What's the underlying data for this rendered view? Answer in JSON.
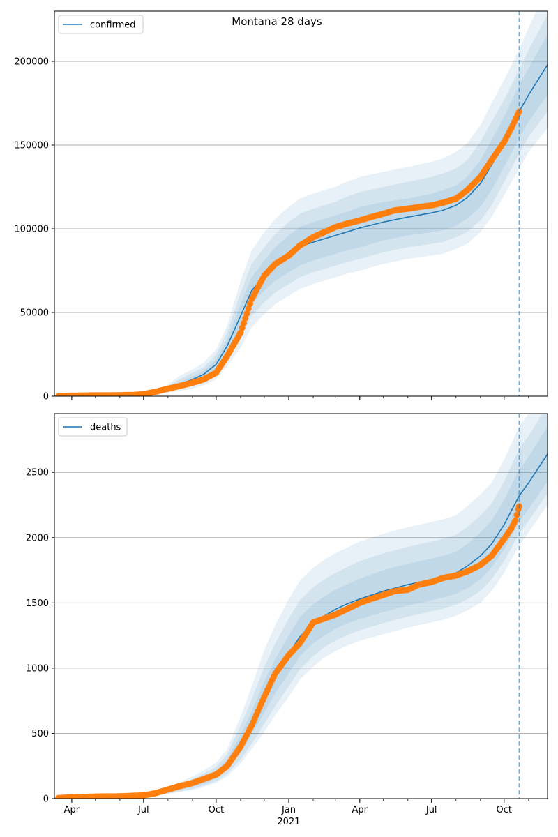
{
  "figure_title": "Montana 28 days",
  "chart_data": [
    {
      "type": "line",
      "legend_label": "confirmed",
      "legend_position": "upper-left",
      "grid": "horizontal",
      "x_axis": "date",
      "xlim": [
        "2020-03-10",
        "2021-11-25"
      ],
      "ylim": [
        0,
        230000
      ],
      "yticks": [
        0,
        50000,
        100000,
        150000,
        200000
      ],
      "cutoff_date": "2021-10-20",
      "model": {
        "x": [
          "2020-03-10",
          "2020-04-01",
          "2020-05-01",
          "2020-06-01",
          "2020-07-01",
          "2020-07-15",
          "2020-08-01",
          "2020-08-15",
          "2020-09-01",
          "2020-09-15",
          "2020-10-01",
          "2020-10-15",
          "2020-11-01",
          "2020-11-15",
          "2020-12-01",
          "2020-12-15",
          "2021-01-01",
          "2021-01-15",
          "2021-02-01",
          "2021-02-15",
          "2021-03-01",
          "2021-03-15",
          "2021-04-01",
          "2021-05-01",
          "2021-06-01",
          "2021-07-01",
          "2021-07-15",
          "2021-08-01",
          "2021-08-15",
          "2021-09-01",
          "2021-09-15",
          "2021-10-01",
          "2021-10-20",
          "2021-11-01",
          "2021-11-25"
        ],
        "y": [
          0,
          200,
          400,
          600,
          1000,
          2000,
          4500,
          7000,
          10000,
          13000,
          19000,
          30000,
          48000,
          63000,
          72000,
          79000,
          85000,
          89500,
          92000,
          94000,
          96000,
          98000,
          100500,
          104000,
          107000,
          109500,
          111000,
          114000,
          118500,
          127000,
          138000,
          152000,
          170000,
          180000,
          198000
        ],
        "band1": [
          0,
          100,
          300,
          500,
          1000,
          2000,
          4000,
          6000,
          8000,
          11000,
          16000,
          26000,
          41000,
          55000,
          63000,
          69000,
          74000,
          78000,
          81000,
          83000,
          85000,
          87000,
          89000,
          93000,
          96000,
          98000,
          99000,
          102000,
          106000,
          113000,
          123000,
          137000,
          154000,
          164000,
          180000
        ],
        "band2": [
          0,
          300,
          500,
          700,
          1000,
          2000,
          5000,
          8000,
          12000,
          15000,
          22000,
          34000,
          55000,
          71000,
          81000,
          89000,
          96000,
          101000,
          104000,
          106000,
          108000,
          110000,
          113000,
          116000,
          118000,
          121000,
          123000,
          126000,
          131000,
          141000,
          153000,
          167000,
          186000,
          196000,
          216000
        ],
        "band3": [
          0,
          0,
          100,
          300,
          700,
          1500,
          3000,
          4500,
          6500,
          9000,
          13000,
          22000,
          35000,
          48000,
          56000,
          62000,
          67000,
          71000,
          74000,
          76000,
          78000,
          80000,
          82000,
          86000,
          89000,
          91000,
          92000,
          95000,
          98000,
          105000,
          114000,
          128000,
          145000,
          155000,
          170000
        ],
        "band4": [
          0,
          500,
          700,
          900,
          1300,
          2500,
          6000,
          10000,
          14000,
          17000,
          25000,
          38000,
          62000,
          79000,
          89000,
          97000,
          104000,
          109000,
          112000,
          114000,
          116000,
          119000,
          122000,
          125000,
          128000,
          131000,
          133000,
          136000,
          141000,
          152000,
          164000,
          177000,
          195000,
          207000,
          228000
        ],
        "band5": [
          0,
          0,
          0,
          100,
          400,
          1000,
          2000,
          3000,
          4500,
          6500,
          10000,
          18000,
          29000,
          41000,
          49000,
          55000,
          60000,
          64000,
          67000,
          69000,
          71000,
          73000,
          75000,
          79000,
          82000,
          84000,
          85000,
          88000,
          91000,
          98000,
          107000,
          120000,
          136000,
          146000,
          160000
        ],
        "band6": [
          0,
          700,
          900,
          1200,
          1700,
          3000,
          7000,
          12000,
          16000,
          20000,
          28000,
          42000,
          69000,
          87000,
          98000,
          106000,
          113000,
          118000,
          121000,
          123000,
          125000,
          128000,
          131000,
          134000,
          137000,
          140000,
          142000,
          146000,
          151000,
          162000,
          175000,
          189000,
          207000,
          220000,
          245000
        ]
      },
      "observed": {
        "x": [
          "2020-03-15",
          "2020-04-01",
          "2020-05-01",
          "2020-06-01",
          "2020-06-20",
          "2020-07-01",
          "2020-07-15",
          "2020-08-01",
          "2020-08-15",
          "2020-09-01",
          "2020-09-15",
          "2020-10-01",
          "2020-10-15",
          "2020-11-01",
          "2020-11-15",
          "2020-12-01",
          "2020-12-15",
          "2021-01-01",
          "2021-01-15",
          "2021-02-01",
          "2021-02-15",
          "2021-03-01",
          "2021-03-15",
          "2021-04-01",
          "2021-04-15",
          "2021-05-01",
          "2021-05-15",
          "2021-06-01",
          "2021-06-15",
          "2021-07-01",
          "2021-07-15",
          "2021-08-01",
          "2021-08-15",
          "2021-09-01",
          "2021-09-15",
          "2021-10-01",
          "2021-10-10",
          "2021-10-20"
        ],
        "y": [
          0,
          300,
          500,
          600,
          800,
          1200,
          2500,
          4500,
          6000,
          8000,
          10000,
          14000,
          24000,
          38000,
          58000,
          72000,
          79000,
          84000,
          90000,
          95000,
          98000,
          101000,
          103000,
          105000,
          107000,
          109000,
          111000,
          112000,
          113000,
          114000,
          115500,
          118000,
          123000,
          131000,
          141000,
          152000,
          160000,
          170000
        ]
      }
    },
    {
      "type": "line",
      "legend_label": "deaths",
      "legend_position": "upper-left",
      "grid": "horizontal",
      "x_axis": "date",
      "xlim": [
        "2020-03-10",
        "2021-11-25"
      ],
      "ylim": [
        0,
        2950
      ],
      "yticks": [
        0,
        500,
        1000,
        1500,
        2000,
        2500
      ],
      "xtick_labels": [
        "Apr",
        "Jul",
        "Oct",
        "Jan",
        "Apr",
        "Jul",
        "Oct"
      ],
      "xtick_dates": [
        "2020-04-01",
        "2020-07-01",
        "2020-10-01",
        "2021-01-01",
        "2021-04-01",
        "2021-07-01",
        "2021-10-01"
      ],
      "year_label": "2021",
      "cutoff_date": "2021-10-20",
      "model": {
        "x": [
          "2020-03-10",
          "2020-04-01",
          "2020-05-01",
          "2020-06-01",
          "2020-07-01",
          "2020-07-15",
          "2020-08-01",
          "2020-08-15",
          "2020-09-01",
          "2020-09-15",
          "2020-10-01",
          "2020-10-15",
          "2020-11-01",
          "2020-11-15",
          "2020-12-01",
          "2020-12-15",
          "2021-01-01",
          "2021-01-15",
          "2021-02-01",
          "2021-02-15",
          "2021-03-01",
          "2021-03-15",
          "2021-04-01",
          "2021-05-01",
          "2021-06-01",
          "2021-07-01",
          "2021-07-15",
          "2021-08-01",
          "2021-08-15",
          "2021-09-01",
          "2021-09-15",
          "2021-10-01",
          "2021-10-20",
          "2021-11-01",
          "2021-11-25"
        ],
        "y": [
          0,
          10,
          15,
          20,
          25,
          35,
          55,
          80,
          110,
          140,
          185,
          260,
          420,
          580,
          780,
          940,
          1110,
          1240,
          1340,
          1400,
          1450,
          1490,
          1530,
          1590,
          1640,
          1680,
          1700,
          1730,
          1780,
          1860,
          1950,
          2100,
          2320,
          2420,
          2640
        ],
        "band1": [
          0,
          5,
          10,
          15,
          20,
          30,
          45,
          65,
          90,
          115,
          155,
          220,
          350,
          490,
          660,
          810,
          960,
          1090,
          1190,
          1250,
          1300,
          1340,
          1375,
          1430,
          1480,
          1520,
          1540,
          1570,
          1610,
          1680,
          1770,
          1910,
          2120,
          2220,
          2430
        ],
        "band2": [
          0,
          15,
          20,
          25,
          30,
          40,
          65,
          95,
          130,
          165,
          215,
          300,
          490,
          670,
          900,
          1070,
          1250,
          1390,
          1490,
          1550,
          1600,
          1640,
          1685,
          1750,
          1800,
          1840,
          1860,
          1890,
          1950,
          2040,
          2130,
          2290,
          2520,
          2620,
          2850
        ],
        "band3": [
          0,
          0,
          5,
          10,
          15,
          25,
          40,
          55,
          75,
          100,
          135,
          190,
          300,
          420,
          570,
          710,
          860,
          990,
          1090,
          1160,
          1210,
          1250,
          1290,
          1345,
          1395,
          1435,
          1455,
          1485,
          1525,
          1590,
          1680,
          1820,
          2030,
          2130,
          2340
        ],
        "band4": [
          0,
          20,
          25,
          30,
          35,
          45,
          75,
          110,
          150,
          190,
          245,
          340,
          560,
          760,
          1010,
          1190,
          1380,
          1520,
          1620,
          1680,
          1730,
          1770,
          1820,
          1880,
          1930,
          1970,
          1990,
          2020,
          2080,
          2170,
          2260,
          2430,
          2680,
          2780,
          3010
        ],
        "band5": [
          0,
          0,
          0,
          5,
          10,
          20,
          35,
          50,
          65,
          90,
          120,
          170,
          270,
          380,
          510,
          640,
          780,
          910,
          1010,
          1080,
          1130,
          1170,
          1210,
          1260,
          1310,
          1350,
          1370,
          1400,
          1440,
          1500,
          1590,
          1730,
          1940,
          2040,
          2250
        ],
        "band6": [
          0,
          25,
          30,
          35,
          40,
          50,
          85,
          125,
          170,
          215,
          275,
          380,
          630,
          860,
          1140,
          1330,
          1530,
          1670,
          1770,
          1830,
          1880,
          1920,
          1970,
          2030,
          2080,
          2120,
          2140,
          2170,
          2240,
          2330,
          2420,
          2600,
          2850,
          2950,
          3180
        ]
      },
      "observed": {
        "x": [
          "2020-03-15",
          "2020-04-01",
          "2020-05-01",
          "2020-06-01",
          "2020-07-01",
          "2020-07-15",
          "2020-08-01",
          "2020-08-15",
          "2020-09-01",
          "2020-09-15",
          "2020-10-01",
          "2020-10-15",
          "2020-11-01",
          "2020-11-15",
          "2020-12-01",
          "2020-12-15",
          "2021-01-01",
          "2021-01-15",
          "2021-02-01",
          "2021-02-15",
          "2021-03-01",
          "2021-03-15",
          "2021-04-01",
          "2021-04-15",
          "2021-05-01",
          "2021-05-15",
          "2021-06-01",
          "2021-06-15",
          "2021-07-01",
          "2021-07-15",
          "2021-08-01",
          "2021-08-15",
          "2021-09-01",
          "2021-09-15",
          "2021-10-01",
          "2021-10-10",
          "2021-10-15",
          "2021-10-20"
        ],
        "y": [
          5,
          10,
          16,
          18,
          25,
          40,
          70,
          95,
          120,
          150,
          185,
          250,
          400,
          560,
          780,
          960,
          1100,
          1190,
          1350,
          1380,
          1410,
          1450,
          1500,
          1530,
          1560,
          1590,
          1600,
          1640,
          1660,
          1690,
          1710,
          1740,
          1790,
          1860,
          1990,
          2070,
          2130,
          2240
        ]
      }
    }
  ]
}
